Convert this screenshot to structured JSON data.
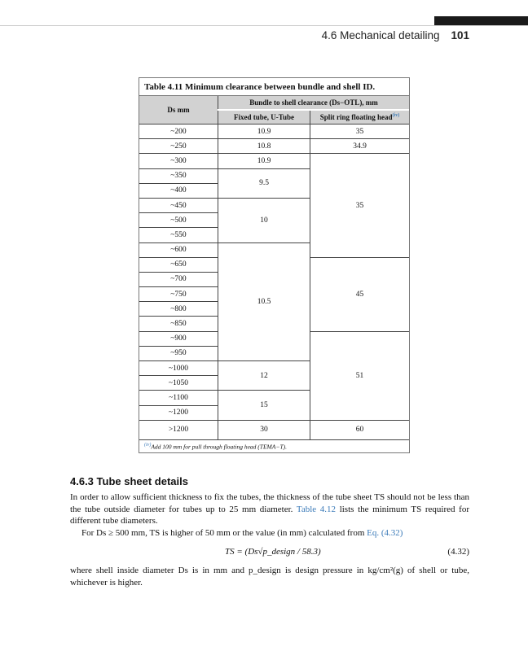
{
  "header": {
    "section": "4.6 Mechanical detailing",
    "page": "101"
  },
  "table": {
    "caption": "Table 4.11 Minimum clearance between bundle and shell ID.",
    "col1_header": "Ds mm",
    "group_header": "Bundle to shell clearance (Ds−OTL), mm",
    "col2_header": "Fixed tube, U-Tube",
    "col3_header": "Split ring floating head",
    "col3_sup": "(iv)",
    "rows": [
      "~200",
      "~250",
      "~300",
      "~350",
      "~400",
      "~450",
      "~500",
      "~550",
      "~600",
      "~650",
      "~700",
      "~750",
      "~800",
      "~850",
      "~900",
      "~950",
      "~1000",
      "~1050",
      "~1100",
      "~1200",
      ">1200"
    ],
    "fixed_tube": [
      {
        "value": "10.9",
        "span": 1
      },
      {
        "value": "10.8",
        "span": 1
      },
      {
        "value": "10.9",
        "span": 1
      },
      {
        "value": "9.5",
        "span": 2
      },
      {
        "value": "10",
        "span": 3
      },
      {
        "value": "10.5",
        "span": 8
      },
      {
        "value": "12",
        "span": 2
      },
      {
        "value": "15",
        "span": 2
      },
      {
        "value": "30",
        "span": 1
      }
    ],
    "split_ring": [
      {
        "value": "35",
        "span": 1
      },
      {
        "value": "34.9",
        "span": 1
      },
      {
        "value": "35",
        "span": 7
      },
      {
        "value": "45",
        "span": 5
      },
      {
        "value": "51",
        "span": 6
      },
      {
        "value": "60",
        "span": 1
      }
    ],
    "footnote_mark": "(iv)",
    "footnote": "Add 100 mm for pull through floating head (TEMA−T)."
  },
  "section": {
    "heading": "4.6.3 Tube sheet details",
    "p1_a": "In order to allow sufficient thickness to fix the tubes, the thickness of the tube sheet TS should not be less than the tube outside diameter for tubes up to 25 mm diameter. ",
    "p1_link": "Table 4.12",
    "p1_b": " lists the minimum TS required for different tube diameters.",
    "p2_a": "For Ds ≥ 500 mm, TS is higher of 50 mm or the value (in mm) calculated from ",
    "p2_link": "Eq. (4.32)",
    "equation": "TS = (Ds√p_design / 58.3)",
    "equation_number": "(4.32)",
    "p3": "where shell inside diameter Ds is in mm and p_design is design pressure in kg/cm²(g) of shell or tube, whichever is higher."
  }
}
